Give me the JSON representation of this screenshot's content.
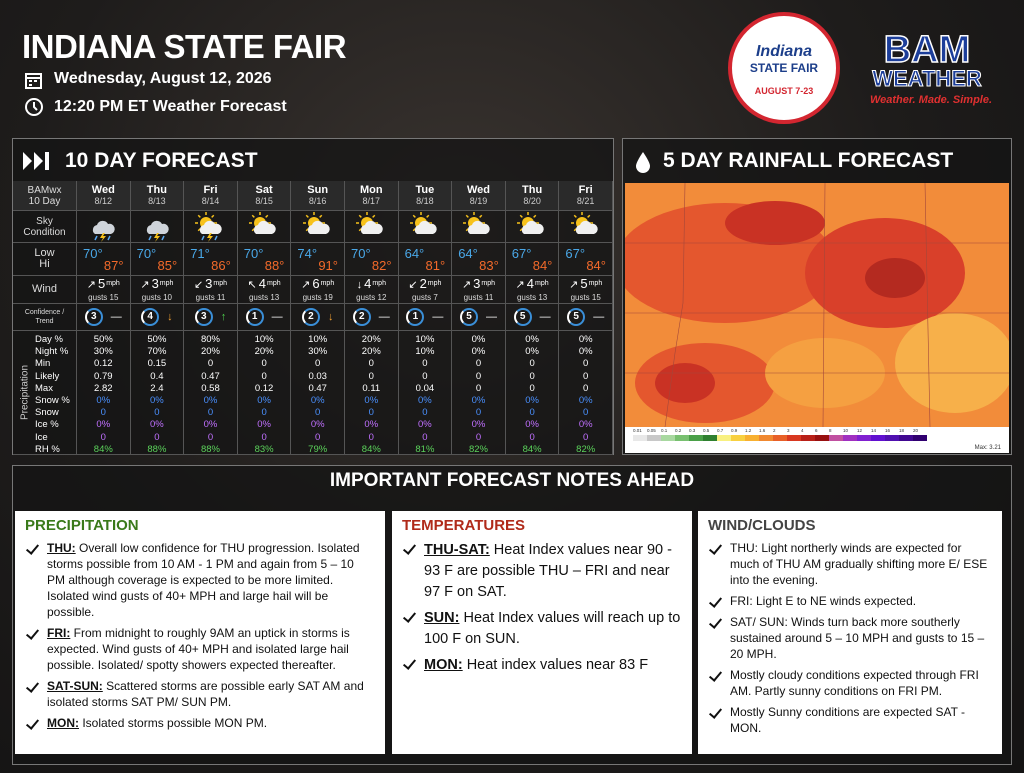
{
  "header": {
    "title": "INDIANA STATE FAIR",
    "date": "Wednesday, August 12, 2026",
    "time": "12:20 PM ET Weather Forecast"
  },
  "fair_logo": {
    "name": "Indiana",
    "sub": "STATE FAIR",
    "dates": "AUGUST 7-23"
  },
  "bam_logo": {
    "name": "BAM",
    "sub": "WEATHER",
    "tagline": "Weather. Made. Simple."
  },
  "forecast": {
    "title": "10 DAY FORECAST",
    "corner": [
      "BAMwx",
      "10 Day"
    ],
    "row_labels": {
      "sky": [
        "Sky",
        "Condition"
      ],
      "low": "Low",
      "hi": "Hi",
      "wind": "Wind",
      "confidence": [
        "Confidence /",
        "Trend"
      ],
      "precip_group": "Precipitation",
      "precip": [
        "Day %",
        "Night %",
        "Min",
        "Likely",
        "Max",
        "Snow %",
        "Snow",
        "Ice %",
        "Ice",
        "RH %"
      ]
    },
    "days": [
      {
        "day": "Wed",
        "date": "8/12",
        "sky": "storm",
        "low": "70°",
        "hi": "87°",
        "dir": "↗",
        "speed": "5",
        "unit": "mph",
        "gusts": "gusts 15",
        "confidence": "3",
        "trend": "—",
        "precip": [
          "50%",
          "30%",
          "0.12",
          "0.79",
          "2.82",
          "0%",
          "0",
          "0%",
          "0",
          "84%"
        ]
      },
      {
        "day": "Thu",
        "date": "8/13",
        "sky": "storm",
        "low": "70°",
        "hi": "85°",
        "dir": "↗",
        "speed": "3",
        "unit": "mph",
        "gusts": "gusts 10",
        "confidence": "4",
        "trend": "↓",
        "precip": [
          "50%",
          "70%",
          "0.15",
          "0.4",
          "2.4",
          "0%",
          "0",
          "0%",
          "0",
          "88%"
        ]
      },
      {
        "day": "Fri",
        "date": "8/14",
        "sky": "sunstorm",
        "low": "71°",
        "hi": "86°",
        "dir": "↙",
        "speed": "3",
        "unit": "mph",
        "gusts": "gusts 11",
        "confidence": "3",
        "trend": "↑",
        "precip": [
          "80%",
          "20%",
          "0",
          "0.47",
          "0.58",
          "0%",
          "0",
          "0%",
          "0",
          "88%"
        ]
      },
      {
        "day": "Sat",
        "date": "8/15",
        "sky": "partly",
        "low": "70°",
        "hi": "88°",
        "dir": "↖",
        "speed": "4",
        "unit": "mph",
        "gusts": "gusts 13",
        "confidence": "1",
        "trend": "—",
        "precip": [
          "10%",
          "20%",
          "0",
          "0",
          "0.12",
          "0%",
          "0",
          "0%",
          "0",
          "83%"
        ]
      },
      {
        "day": "Sun",
        "date": "8/16",
        "sky": "partly",
        "low": "74°",
        "hi": "91°",
        "dir": "↗",
        "speed": "6",
        "unit": "mph",
        "gusts": "gusts 19",
        "confidence": "2",
        "trend": "↓",
        "precip": [
          "10%",
          "30%",
          "0",
          "0.03",
          "0.47",
          "0%",
          "0",
          "0%",
          "0",
          "79%"
        ]
      },
      {
        "day": "Mon",
        "date": "8/17",
        "sky": "partly",
        "low": "70°",
        "hi": "82°",
        "dir": "↓",
        "speed": "4",
        "unit": "mph",
        "gusts": "gusts 12",
        "confidence": "2",
        "trend": "—",
        "precip": [
          "20%",
          "20%",
          "0",
          "0",
          "0.11",
          "0%",
          "0",
          "0%",
          "0",
          "84%"
        ]
      },
      {
        "day": "Tue",
        "date": "8/18",
        "sky": "partly",
        "low": "64°",
        "hi": "81°",
        "dir": "↙",
        "speed": "2",
        "unit": "mph",
        "gusts": "gusts 7",
        "confidence": "1",
        "trend": "—",
        "precip": [
          "10%",
          "10%",
          "0",
          "0",
          "0.04",
          "0%",
          "0",
          "0%",
          "0",
          "81%"
        ]
      },
      {
        "day": "Wed",
        "date": "8/19",
        "sky": "partly",
        "low": "64°",
        "hi": "83°",
        "dir": "↗",
        "speed": "3",
        "unit": "mph",
        "gusts": "gusts 11",
        "confidence": "5",
        "trend": "—",
        "precip": [
          "0%",
          "0%",
          "0",
          "0",
          "0",
          "0%",
          "0",
          "0%",
          "0",
          "82%"
        ]
      },
      {
        "day": "Thu",
        "date": "8/20",
        "sky": "partly",
        "low": "67°",
        "hi": "84°",
        "dir": "↗",
        "speed": "4",
        "unit": "mph",
        "gusts": "gusts 13",
        "confidence": "5",
        "trend": "—",
        "precip": [
          "0%",
          "0%",
          "0",
          "0",
          "0",
          "0%",
          "0",
          "0%",
          "0",
          "84%"
        ]
      },
      {
        "day": "Fri",
        "date": "8/21",
        "sky": "partly",
        "low": "67°",
        "hi": "84°",
        "dir": "↗",
        "speed": "5",
        "unit": "mph",
        "gusts": "gusts 15",
        "confidence": "5",
        "trend": "—",
        "precip": [
          "0%",
          "0%",
          "0",
          "0",
          "0",
          "0%",
          "0",
          "0%",
          "0",
          "82%"
        ]
      }
    ]
  },
  "rainfall": {
    "title": "5 DAY RAINFALL FORECAST",
    "max": "Max: 3.21",
    "legend": [
      "0.01",
      "0.05",
      "0.1",
      "0.2",
      "0.3",
      "0.5",
      "0.7",
      "0.9",
      "1.2",
      "1.6",
      "2",
      "3",
      "4",
      "6",
      "8",
      "10",
      "12",
      "14",
      "16",
      "18",
      "20"
    ]
  },
  "notes": {
    "title": "IMPORTANT FORECAST NOTES AHEAD",
    "columns": [
      {
        "heading": "PRECIPITATION",
        "items": [
          {
            "lead": "THU:",
            "text": " Overall low confidence for THU progression. Isolated storms possible from 10 AM - 1 PM and again from 5 – 10 PM although coverage is expected to be more limited.  Isolated wind gusts of 40+ MPH and large hail will be possible."
          },
          {
            "lead": "FRI:",
            "text": " From midnight to roughly 9AM an uptick in storms is expected.  Wind gusts of 40+ MPH and isolated large hail possible.  Isolated/ spotty showers expected thereafter."
          },
          {
            "lead": "SAT-SUN:",
            "text": " Scattered storms are possible early SAT AM and isolated storms SAT PM/ SUN PM."
          },
          {
            "lead": "MON:",
            "text": " Isolated storms possible MON PM."
          }
        ]
      },
      {
        "heading": "TEMPERATURES",
        "items": [
          {
            "lead": "THU-SAT:",
            "text": "  Heat Index values near 90 - 93 F are possible THU – FRI and near 97 F on SAT."
          },
          {
            "lead": "SUN:",
            "text": " Heat Index values will reach up to 100 F on SUN."
          },
          {
            "lead": "MON:",
            "text": " Heat index values near 83 F"
          }
        ]
      },
      {
        "heading": "WIND/CLOUDS",
        "items": [
          {
            "text": "THU:  Light northerly winds are expected  for much of THU AM gradually shifting more E/ ESE into the evening."
          },
          {
            "text": "FRI:  Light E to NE winds expected."
          },
          {
            "text": "SAT/ SUN:  Winds turn back more southerly sustained around 5 – 10 MPH and gusts to 15 – 20 MPH."
          },
          {
            "text": "Mostly cloudy conditions expected through FRI AM.  Partly sunny conditions on FRI PM."
          },
          {
            "text": "Mostly Sunny conditions are expected SAT - MON."
          }
        ]
      }
    ]
  }
}
